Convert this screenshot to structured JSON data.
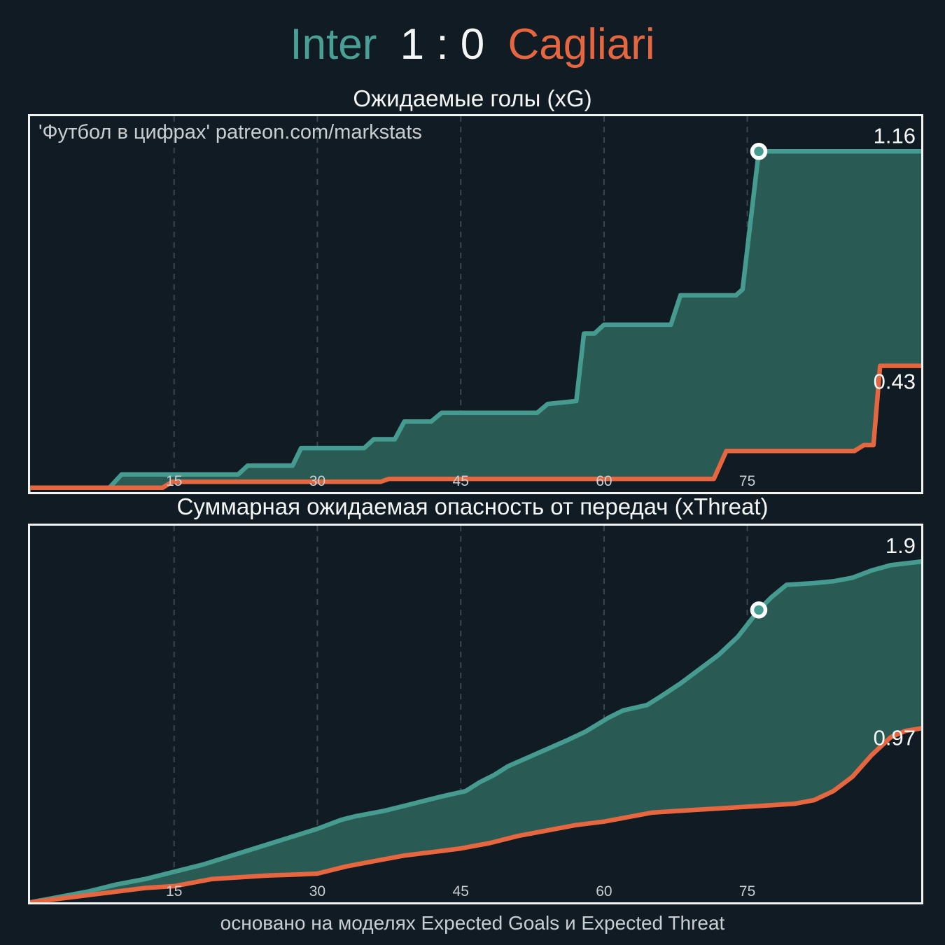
{
  "header": {
    "home_team": "Inter",
    "score": "1 : 0",
    "away_team": "Cagliari"
  },
  "footer": "основано на моделях Expected Goals и Expected Threat",
  "colors": {
    "background": "#101b24",
    "home": "#459b8f",
    "home_fill": "#2a5a54",
    "away": "#e5663f",
    "gridline": "#3b474f",
    "tick_text": "#c9ced2",
    "label_text": "#f6f8f8",
    "marker_ring": "#fcfdfd"
  },
  "chart_data": [
    {
      "type": "area",
      "title": "Ожидаемые голы (xG)",
      "watermark": "'Футбол в цифрах' patreon.com/markstats",
      "xlabel": "",
      "ylabel": "",
      "x_domain": [
        0,
        93.2
      ],
      "y_max": 1.28,
      "x_ticks": [
        15,
        30,
        45,
        60,
        75
      ],
      "grid": "dashed-vertical",
      "legend": "none",
      "end_labels": {
        "home": "1.16",
        "away": "0.43"
      },
      "marker": {
        "minute": 76.2,
        "value": 1.16,
        "meaning": "goal"
      },
      "series": [
        {
          "name": "Inter xG",
          "role": "home",
          "points": [
            [
              0,
              0
            ],
            [
              7.8,
              0
            ],
            [
              9.5,
              0.06
            ],
            [
              21.7,
              0.06
            ],
            [
              22.7,
              0.09
            ],
            [
              27.4,
              0.09
            ],
            [
              28.3,
              0.15
            ],
            [
              34.9,
              0.15
            ],
            [
              35.9,
              0.18
            ],
            [
              38.1,
              0.18
            ],
            [
              39.1,
              0.24
            ],
            [
              41.9,
              0.24
            ],
            [
              43,
              0.27
            ],
            [
              53,
              0.27
            ],
            [
              54.1,
              0.3
            ],
            [
              57.1,
              0.31
            ],
            [
              57.9,
              0.54
            ],
            [
              59,
              0.54
            ],
            [
              60,
              0.57
            ],
            [
              67,
              0.57
            ],
            [
              68,
              0.67
            ],
            [
              73.8,
              0.67
            ],
            [
              74.5,
              0.69
            ],
            [
              76.2,
              1.16
            ],
            [
              93.2,
              1.16
            ]
          ]
        },
        {
          "name": "Cagliari xG",
          "role": "away",
          "points": [
            [
              0,
              0.015
            ],
            [
              13.8,
              0.015
            ],
            [
              14.8,
              0.035
            ],
            [
              36.6,
              0.035
            ],
            [
              37.5,
              0.045
            ],
            [
              71.5,
              0.045
            ],
            [
              72.8,
              0.14
            ],
            [
              86.2,
              0.14
            ],
            [
              87.2,
              0.16
            ],
            [
              88.2,
              0.16
            ],
            [
              88.9,
              0.43
            ],
            [
              93.2,
              0.43
            ]
          ]
        }
      ]
    },
    {
      "type": "area",
      "title": "Суммарная ожидаемая опасность от передач (xThreat)",
      "watermark": "",
      "xlabel": "",
      "ylabel": "",
      "x_domain": [
        0,
        93.2
      ],
      "y_max": 2.1,
      "x_ticks": [
        15,
        30,
        45,
        60,
        75
      ],
      "grid": "dashed-vertical",
      "legend": "none",
      "end_labels": {
        "home": "1.9",
        "away": "0.97"
      },
      "marker": {
        "minute": 76.2,
        "value": 1.63,
        "meaning": "goal"
      },
      "series": [
        {
          "name": "Inter xThreat",
          "role": "home",
          "points": [
            [
              0,
              0
            ],
            [
              3,
              0.03
            ],
            [
              6,
              0.06
            ],
            [
              9,
              0.1
            ],
            [
              12,
              0.13
            ],
            [
              15,
              0.17
            ],
            [
              18,
              0.21
            ],
            [
              21,
              0.26
            ],
            [
              24,
              0.31
            ],
            [
              27,
              0.36
            ],
            [
              30,
              0.41
            ],
            [
              32.5,
              0.46
            ],
            [
              34,
              0.48
            ],
            [
              37,
              0.51
            ],
            [
              40,
              0.55
            ],
            [
              43,
              0.59
            ],
            [
              45.5,
              0.62
            ],
            [
              47,
              0.67
            ],
            [
              48.5,
              0.71
            ],
            [
              50,
              0.76
            ],
            [
              53,
              0.83
            ],
            [
              56,
              0.9
            ],
            [
              58,
              0.95
            ],
            [
              60.5,
              1.03
            ],
            [
              62,
              1.07
            ],
            [
              64.5,
              1.1
            ],
            [
              66,
              1.15
            ],
            [
              68,
              1.22
            ],
            [
              70,
              1.3
            ],
            [
              72,
              1.38
            ],
            [
              74,
              1.48
            ],
            [
              76.2,
              1.63
            ],
            [
              77.5,
              1.7
            ],
            [
              79.1,
              1.77
            ],
            [
              82,
              1.78
            ],
            [
              84,
              1.79
            ],
            [
              86,
              1.81
            ],
            [
              88,
              1.85
            ],
            [
              90,
              1.88
            ],
            [
              93.2,
              1.9
            ]
          ]
        },
        {
          "name": "Cagliari xThreat",
          "role": "away",
          "points": [
            [
              0,
              0
            ],
            [
              3,
              0.02
            ],
            [
              6,
              0.04
            ],
            [
              9,
              0.06
            ],
            [
              12,
              0.08
            ],
            [
              15,
              0.09
            ],
            [
              17,
              0.11
            ],
            [
              19,
              0.13
            ],
            [
              22,
              0.14
            ],
            [
              25,
              0.15
            ],
            [
              28,
              0.155
            ],
            [
              30,
              0.16
            ],
            [
              33,
              0.2
            ],
            [
              36,
              0.23
            ],
            [
              39,
              0.26
            ],
            [
              42,
              0.28
            ],
            [
              45,
              0.3
            ],
            [
              48,
              0.33
            ],
            [
              51,
              0.37
            ],
            [
              54,
              0.4
            ],
            [
              57,
              0.43
            ],
            [
              60,
              0.45
            ],
            [
              62,
              0.47
            ],
            [
              65,
              0.5
            ],
            [
              68,
              0.51
            ],
            [
              71,
              0.52
            ],
            [
              74,
              0.53
            ],
            [
              77,
              0.54
            ],
            [
              80,
              0.55
            ],
            [
              82,
              0.57
            ],
            [
              84,
              0.62
            ],
            [
              86,
              0.7
            ],
            [
              88,
              0.82
            ],
            [
              90,
              0.92
            ],
            [
              91.5,
              0.955
            ],
            [
              93.2,
              0.97
            ]
          ]
        }
      ]
    }
  ]
}
